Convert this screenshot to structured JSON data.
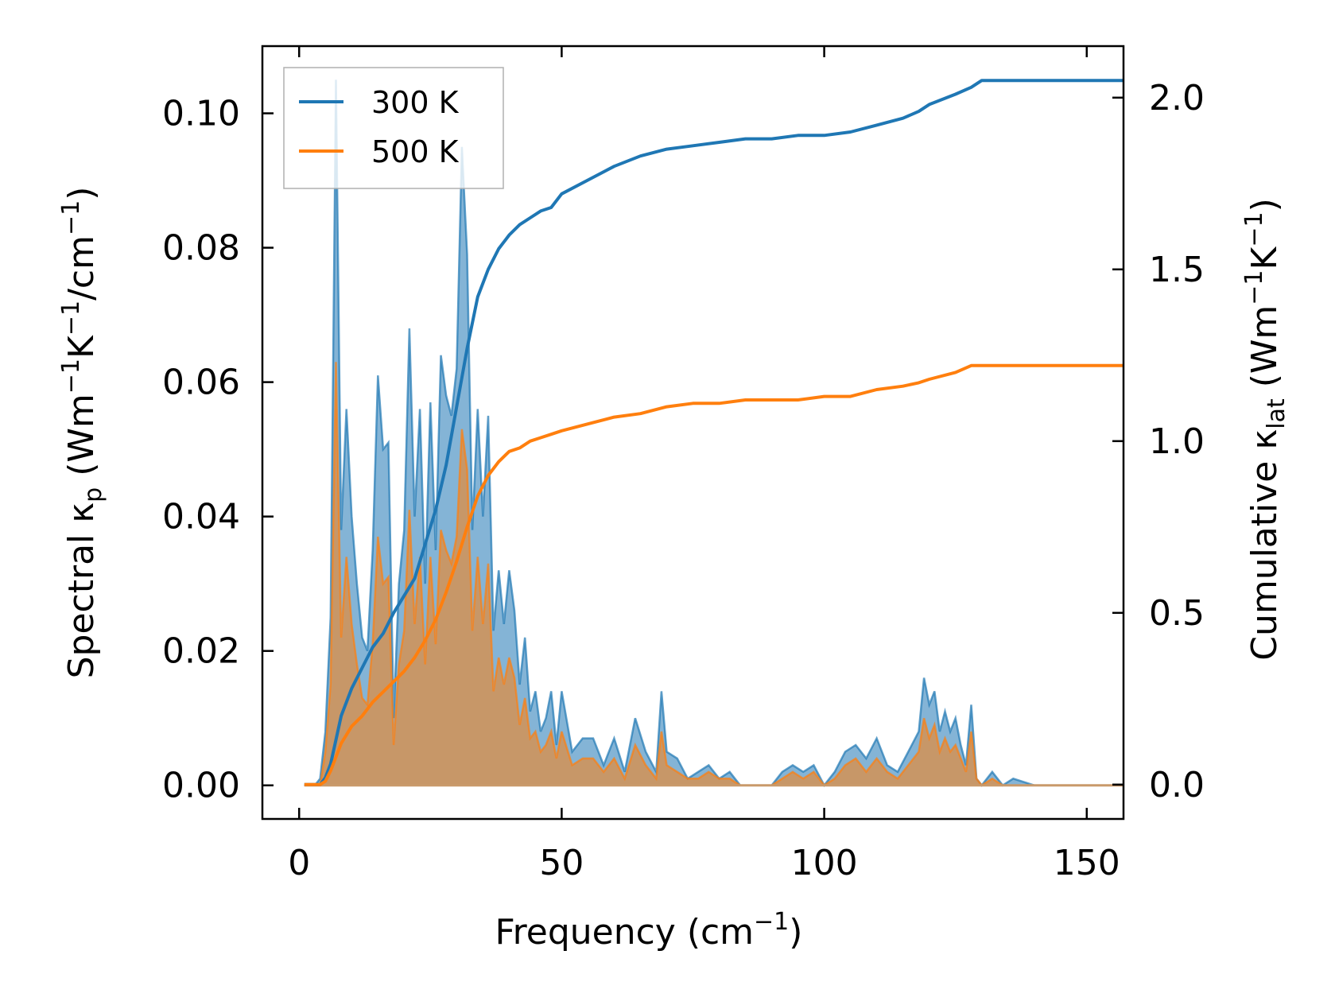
{
  "chart_data": {
    "type": "line",
    "xlabel": "Frequency (cm⁻¹)",
    "ylabel_left": "Spectral κₚ (Wm⁻¹K⁻¹/cm⁻¹)",
    "ylabel_right": "Cumulative κ_lat (Wm⁻¹K⁻¹)",
    "labels": {
      "xlabel_main": "Frequency (cm",
      "xlabel_sup": "−1",
      "xlabel_end": ")",
      "ylabel_left_main": "Spectral κ",
      "ylabel_left_sub": "p",
      "ylabel_left_unit_a": " (Wm",
      "ylabel_left_sup1": "−1",
      "ylabel_left_unit_b": "K",
      "ylabel_left_sup2": "−1",
      "ylabel_left_unit_c": "/cm",
      "ylabel_left_sup3": "−1",
      "ylabel_left_end": ")",
      "ylabel_right_main": "Cumulative κ",
      "ylabel_right_sub": "lat",
      "ylabel_right_unit_a": " (Wm",
      "ylabel_right_sup1": "−1",
      "ylabel_right_unit_b": "K",
      "ylabel_right_sup2": "−1",
      "ylabel_right_end": ")"
    },
    "xlim": [
      -7,
      157
    ],
    "ylim_left": [
      -0.005,
      0.11
    ],
    "ylim_right": [
      -0.1,
      2.15
    ],
    "xticks": [
      0,
      50,
      100,
      150
    ],
    "xtick_labels": [
      "0",
      "50",
      "100",
      "150"
    ],
    "yticks_left": [
      0.0,
      0.02,
      0.04,
      0.06,
      0.08,
      0.1
    ],
    "ytick_labels_left": [
      "0.00",
      "0.02",
      "0.04",
      "0.06",
      "0.08",
      "0.10"
    ],
    "yticks_right": [
      0.0,
      0.5,
      1.0,
      1.5,
      2.0
    ],
    "ytick_labels_right": [
      "0.0",
      "0.5",
      "1.0",
      "1.5",
      "2.0"
    ],
    "legend": {
      "placement": "top-left",
      "entries": [
        "300 K",
        "500 K"
      ]
    },
    "series": [
      {
        "name": "300 K",
        "color": "#1f77b4",
        "spectral": {
          "x": [
            1,
            3,
            4,
            5,
            6,
            7,
            8,
            9,
            10,
            11,
            12,
            13,
            14,
            15,
            16,
            17,
            18,
            19,
            20,
            21,
            22,
            23,
            24,
            25,
            26,
            27,
            28,
            29,
            30,
            31,
            32,
            33,
            34,
            35,
            36,
            37,
            38,
            39,
            40,
            41,
            42,
            43,
            44,
            45,
            46,
            47,
            48,
            49,
            50,
            52,
            54,
            56,
            58,
            60,
            62,
            64,
            66,
            68,
            69,
            70,
            72,
            74,
            76,
            78,
            80,
            82,
            84,
            86,
            88,
            90,
            92,
            94,
            96,
            98,
            100,
            102,
            104,
            106,
            108,
            110,
            112,
            114,
            116,
            118,
            119,
            120,
            121,
            122,
            123,
            124,
            125,
            126,
            127,
            128,
            129,
            130,
            132,
            134,
            136,
            140,
            150,
            157
          ],
          "y": [
            0.0,
            0.0,
            0.001,
            0.008,
            0.025,
            0.105,
            0.038,
            0.056,
            0.04,
            0.03,
            0.022,
            0.02,
            0.035,
            0.061,
            0.05,
            0.051,
            0.01,
            0.03,
            0.038,
            0.068,
            0.04,
            0.056,
            0.03,
            0.057,
            0.035,
            0.064,
            0.058,
            0.055,
            0.062,
            0.095,
            0.079,
            0.038,
            0.056,
            0.04,
            0.055,
            0.023,
            0.032,
            0.024,
            0.032,
            0.026,
            0.015,
            0.022,
            0.011,
            0.014,
            0.008,
            0.01,
            0.014,
            0.006,
            0.014,
            0.005,
            0.007,
            0.007,
            0.003,
            0.007,
            0.002,
            0.01,
            0.005,
            0.002,
            0.014,
            0.005,
            0.004,
            0.001,
            0.002,
            0.003,
            0.001,
            0.002,
            0.0,
            0.0,
            0.0,
            0.0,
            0.002,
            0.003,
            0.002,
            0.003,
            0.0,
            0.002,
            0.005,
            0.006,
            0.004,
            0.007,
            0.003,
            0.002,
            0.005,
            0.008,
            0.016,
            0.012,
            0.014,
            0.008,
            0.011,
            0.008,
            0.01,
            0.006,
            0.003,
            0.012,
            0.001,
            0.0,
            0.002,
            0.0,
            0.001,
            0.0,
            0.0,
            0.0
          ]
        },
        "cumulative": {
          "x": [
            1,
            3,
            4,
            5,
            6,
            7,
            8,
            10,
            12,
            14,
            16,
            18,
            20,
            22,
            24,
            26,
            28,
            30,
            32,
            34,
            36,
            38,
            40,
            42,
            44,
            46,
            48,
            50,
            55,
            60,
            65,
            70,
            75,
            80,
            85,
            90,
            95,
            100,
            105,
            110,
            115,
            118,
            120,
            125,
            128,
            130,
            135,
            140,
            157
          ],
          "y": [
            0.0,
            0.0,
            0.0,
            0.02,
            0.06,
            0.13,
            0.2,
            0.28,
            0.34,
            0.4,
            0.44,
            0.5,
            0.55,
            0.6,
            0.7,
            0.8,
            0.93,
            1.1,
            1.27,
            1.42,
            1.5,
            1.56,
            1.6,
            1.63,
            1.65,
            1.67,
            1.68,
            1.72,
            1.76,
            1.8,
            1.83,
            1.85,
            1.86,
            1.87,
            1.88,
            1.88,
            1.89,
            1.89,
            1.9,
            1.92,
            1.94,
            1.96,
            1.98,
            2.01,
            2.03,
            2.05,
            2.05,
            2.05,
            2.05
          ]
        }
      },
      {
        "name": "500 K",
        "color": "#ff7f0e",
        "spectral": {
          "x": [
            1,
            3,
            4,
            5,
            6,
            7,
            8,
            9,
            10,
            11,
            12,
            13,
            14,
            15,
            16,
            17,
            18,
            19,
            20,
            21,
            22,
            23,
            24,
            25,
            26,
            27,
            28,
            29,
            30,
            31,
            32,
            33,
            34,
            35,
            36,
            37,
            38,
            39,
            40,
            41,
            42,
            43,
            44,
            45,
            46,
            47,
            48,
            49,
            50,
            52,
            54,
            56,
            58,
            60,
            62,
            64,
            66,
            68,
            69,
            70,
            72,
            74,
            76,
            78,
            80,
            82,
            84,
            86,
            88,
            90,
            92,
            94,
            96,
            98,
            100,
            102,
            104,
            106,
            108,
            110,
            112,
            114,
            116,
            118,
            119,
            120,
            121,
            122,
            123,
            124,
            125,
            126,
            127,
            128,
            129,
            130,
            132,
            134,
            136,
            140,
            150,
            157
          ],
          "y": [
            0.0,
            0.0,
            0.0,
            0.005,
            0.015,
            0.063,
            0.022,
            0.034,
            0.024,
            0.018,
            0.013,
            0.012,
            0.021,
            0.037,
            0.03,
            0.031,
            0.006,
            0.018,
            0.023,
            0.041,
            0.024,
            0.034,
            0.018,
            0.034,
            0.021,
            0.038,
            0.035,
            0.033,
            0.037,
            0.053,
            0.047,
            0.023,
            0.034,
            0.024,
            0.033,
            0.014,
            0.019,
            0.015,
            0.019,
            0.016,
            0.009,
            0.013,
            0.007,
            0.008,
            0.005,
            0.006,
            0.008,
            0.004,
            0.008,
            0.003,
            0.004,
            0.004,
            0.002,
            0.004,
            0.001,
            0.006,
            0.003,
            0.001,
            0.008,
            0.003,
            0.002,
            0.001,
            0.001,
            0.002,
            0.001,
            0.001,
            0.0,
            0.0,
            0.0,
            0.0,
            0.001,
            0.002,
            0.001,
            0.002,
            0.0,
            0.001,
            0.003,
            0.004,
            0.002,
            0.004,
            0.002,
            0.001,
            0.003,
            0.005,
            0.01,
            0.007,
            0.009,
            0.005,
            0.007,
            0.005,
            0.006,
            0.004,
            0.002,
            0.008,
            0.001,
            0.0,
            0.001,
            0.0,
            0.0,
            0.0,
            0.0,
            0.0
          ]
        },
        "cumulative": {
          "x": [
            1,
            3,
            4,
            5,
            6,
            7,
            8,
            10,
            12,
            14,
            16,
            18,
            20,
            22,
            24,
            26,
            28,
            30,
            32,
            34,
            36,
            38,
            40,
            42,
            44,
            46,
            48,
            50,
            55,
            60,
            65,
            70,
            75,
            80,
            85,
            90,
            95,
            100,
            105,
            110,
            115,
            118,
            120,
            125,
            128,
            130,
            135,
            140,
            157
          ],
          "y": [
            0.0,
            0.0,
            0.0,
            0.01,
            0.04,
            0.08,
            0.12,
            0.17,
            0.2,
            0.24,
            0.27,
            0.3,
            0.33,
            0.37,
            0.42,
            0.48,
            0.56,
            0.65,
            0.75,
            0.84,
            0.9,
            0.94,
            0.97,
            0.98,
            1.0,
            1.01,
            1.02,
            1.03,
            1.05,
            1.07,
            1.08,
            1.1,
            1.11,
            1.11,
            1.12,
            1.12,
            1.12,
            1.13,
            1.13,
            1.15,
            1.16,
            1.17,
            1.18,
            1.2,
            1.22,
            1.22,
            1.22,
            1.22,
            1.22
          ]
        }
      }
    ]
  }
}
